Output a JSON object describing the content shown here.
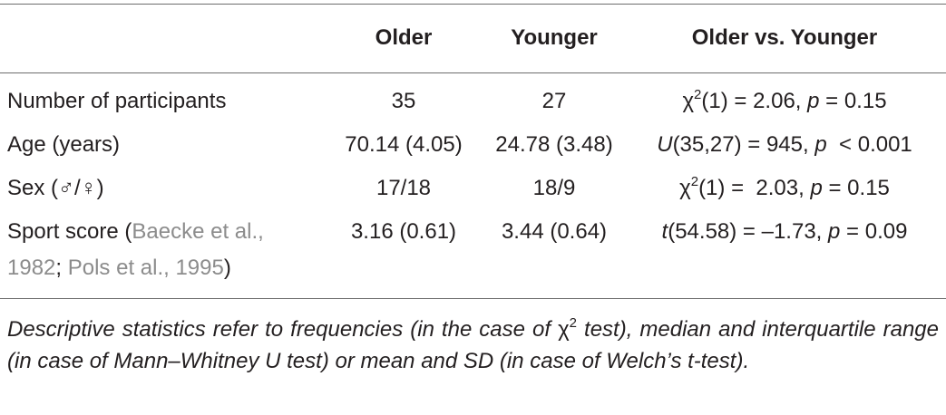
{
  "table": {
    "header": [
      "Older",
      "Younger",
      "Older vs. Younger"
    ],
    "rows": [
      {
        "label": [
          "Number of participants"
        ],
        "older": "35",
        "younger": "27",
        "comparison": [
          "χ",
          "2",
          "(1) = 2.06, ",
          "p",
          " = 0.15"
        ]
      },
      {
        "label": [
          "Age (years)"
        ],
        "older": "70.14 (4.05)",
        "younger": "24.78 (3.48)",
        "comparison": [
          "U",
          "(35,27) = 945, ",
          "p",
          "  < 0.001"
        ]
      },
      {
        "label": [
          "Sex (♂/♀)"
        ],
        "older": "17/18",
        "younger": "18/9",
        "comparison": [
          "χ",
          "2",
          "(1) =  2.03, ",
          "p",
          " = 0.15"
        ]
      },
      {
        "label": [
          "Sport score (",
          "Baecke et al., 1982",
          "; ",
          "Pols et al., 1995",
          ")"
        ],
        "older": "3.16 (0.61)",
        "younger": "3.44 (0.64)",
        "comparison": [
          "t",
          "(54.58) = –1.73, ",
          "p",
          " = 0.09"
        ]
      }
    ]
  },
  "footnote": [
    "Descriptive statistics refer to frequencies (in the case of ",
    "χ",
    "2",
    " test), median and interquartile range (in case of Mann–Whitney U test) or mean and SD (in case of Welch’s t-test)."
  ]
}
